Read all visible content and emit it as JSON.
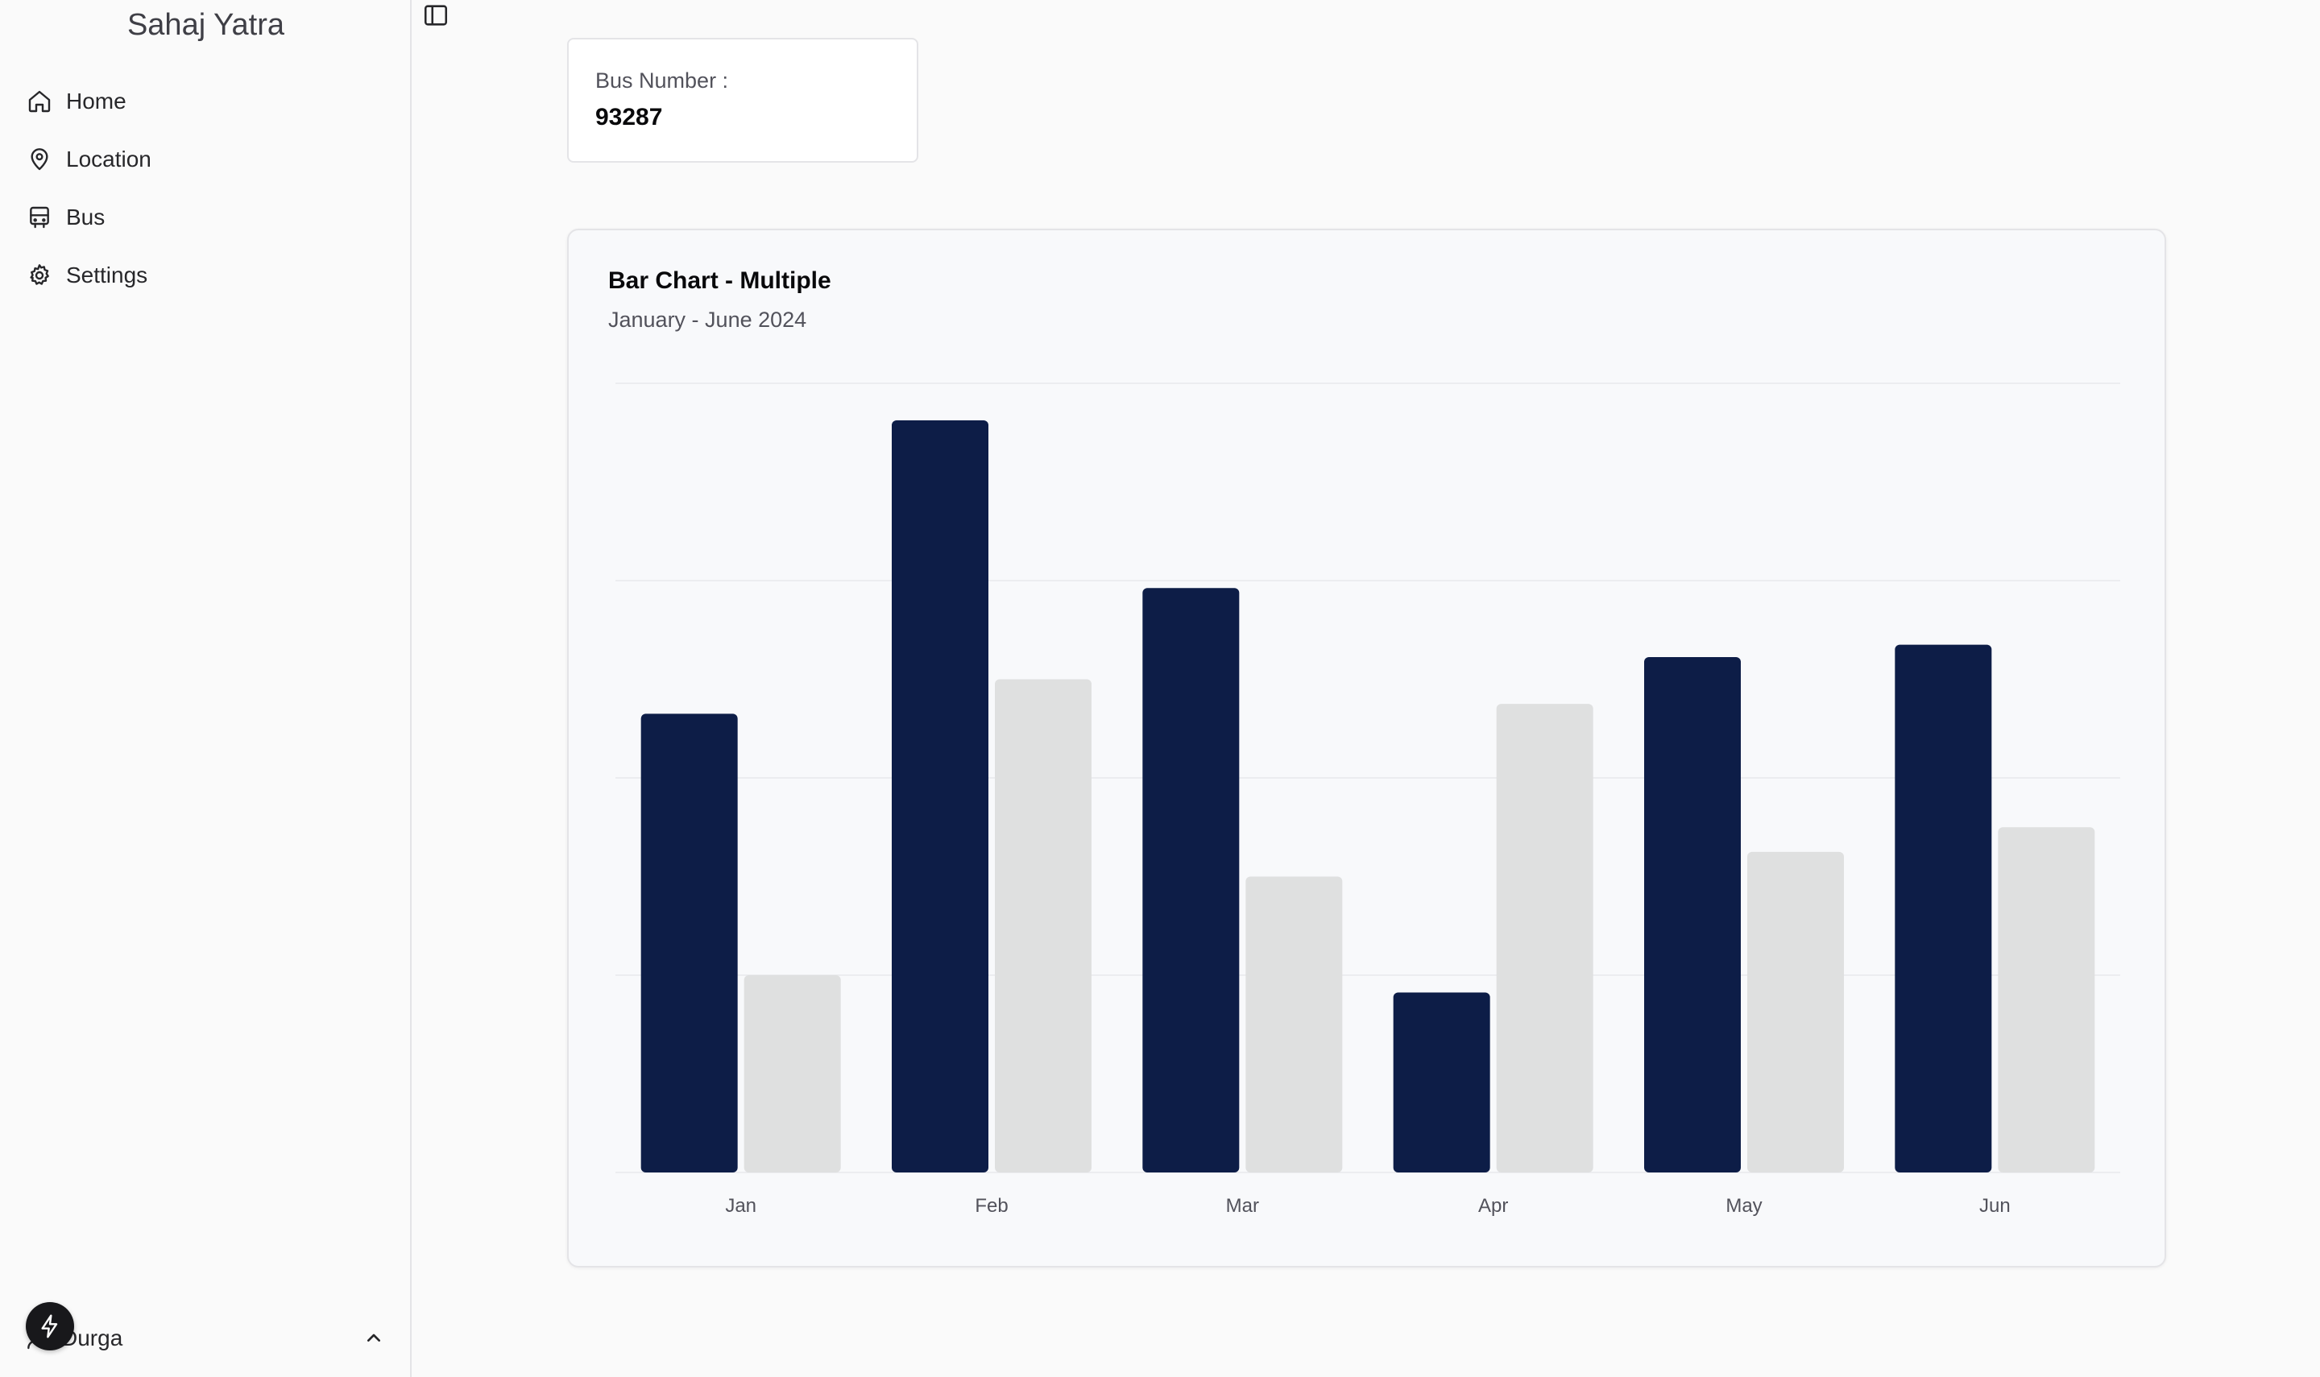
{
  "app": {
    "title": "Sahaj Yatra"
  },
  "sidebar": {
    "items": [
      {
        "label": "Home",
        "icon": "home-icon"
      },
      {
        "label": "Location",
        "icon": "map-pin-icon"
      },
      {
        "label": "Bus",
        "icon": "bus-icon"
      },
      {
        "label": "Settings",
        "icon": "gear-icon"
      }
    ],
    "user": {
      "name": "Durga"
    }
  },
  "bus": {
    "label": "Bus Number :",
    "number": "93287"
  },
  "colors": {
    "series_primary": "#0d1d47",
    "series_secondary": "#dfe0e0",
    "grid": "#e8e9ec"
  },
  "chart_data": {
    "type": "bar",
    "title": "Bar Chart - Multiple",
    "subtitle": "January - June 2024",
    "categories": [
      "Jan",
      "Feb",
      "Mar",
      "Apr",
      "May",
      "Jun"
    ],
    "series": [
      {
        "values": [
          186,
          305,
          237,
          73,
          209,
          214
        ]
      },
      {
        "values": [
          80,
          200,
          120,
          190,
          130,
          140
        ]
      }
    ],
    "ylim": [
      0,
      320
    ],
    "grid": true,
    "legend": "none"
  }
}
